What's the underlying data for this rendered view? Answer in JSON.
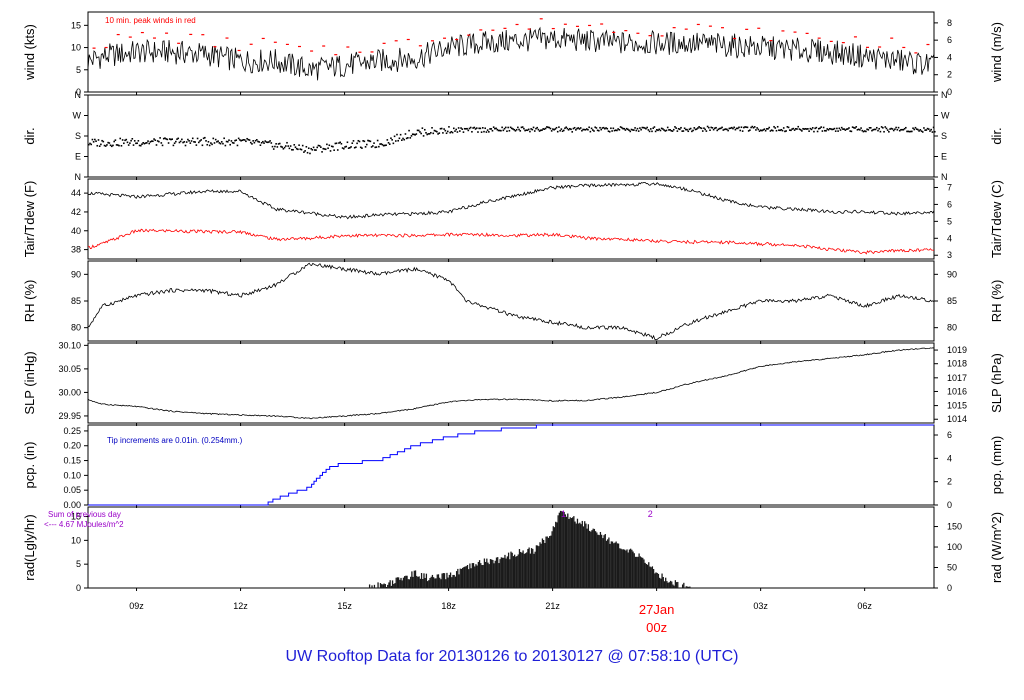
{
  "footer_title": "UW Rooftop Data for 20130126  to  20130127 @ 07:58:10  (UTC)",
  "colors": {
    "axis": "#000000",
    "tair": "#000000",
    "tdew": "#ff0000",
    "pcp": "#0000ff",
    "note_red": "#ff0000",
    "note_blue": "#0000c0",
    "purple": "#9a00c8",
    "date": "#ff0000"
  },
  "chart_data": [
    {
      "type": "line",
      "name": "wind",
      "ylabel": "wind (kts)",
      "ylabel_right": "wind (m/s)",
      "ylim": [
        0,
        18
      ],
      "yticks": [
        0,
        5,
        10,
        15
      ],
      "yticks_right": [
        {
          "label": "0",
          "value": 0
        },
        {
          "label": "2",
          "value": 3.888
        },
        {
          "label": "4",
          "value": 7.776
        },
        {
          "label": "6",
          "value": 11.664
        },
        {
          "label": "8",
          "value": 15.552
        }
      ],
      "annotation": "10 min. peak winds in red",
      "x_start_hour": 7.6,
      "x_end_hour": 32.0,
      "series": [
        {
          "name": "wind",
          "x": [
            7.6,
            8.0,
            9.0,
            10.0,
            11.0,
            12.0,
            13.0,
            14.0,
            15.0,
            16.0,
            17.0,
            18.0,
            19.0,
            20.0,
            21.0,
            22.0,
            23.0,
            24.0,
            25.0,
            26.0,
            27.0,
            28.0,
            29.0,
            30.0,
            31.0,
            32.0
          ],
          "values": [
            7.0,
            8.0,
            9.0,
            9.0,
            8.5,
            7.0,
            7.0,
            5.0,
            6.0,
            7.0,
            7.5,
            10.0,
            11.0,
            11.5,
            12.0,
            11.5,
            11.0,
            11.0,
            11.0,
            10.5,
            10.0,
            9.5,
            9.0,
            8.0,
            7.0,
            6.0
          ]
        },
        {
          "name": "10 min. peak",
          "x": [
            8.0,
            9.0,
            10.0,
            11.0,
            12.0,
            13.0,
            14.0,
            15.0,
            16.0,
            17.0,
            18.0,
            19.0,
            20.0,
            21.0,
            22.0,
            23.0,
            24.0,
            25.0,
            26.0,
            27.0,
            28.0,
            29.0,
            30.0,
            31.0,
            32.0
          ],
          "values": [
            11.0,
            12.5,
            12.5,
            11.5,
            10.5,
            11.0,
            8.5,
            9.5,
            10.5,
            11.0,
            13.0,
            14.0,
            14.5,
            15.5,
            15.0,
            14.5,
            14.0,
            14.5,
            13.5,
            13.0,
            13.0,
            12.0,
            11.5,
            10.5,
            9.0
          ]
        }
      ]
    },
    {
      "type": "scatter",
      "name": "dir",
      "ylabel": "dir.",
      "ylabel_right": "dir.",
      "ylim": [
        0,
        360
      ],
      "ytick_labels": [
        {
          "label": "N",
          "value": 0
        },
        {
          "label": "E",
          "value": 90
        },
        {
          "label": "S",
          "value": 180
        },
        {
          "label": "W",
          "value": 270
        },
        {
          "label": "N",
          "value": 360
        }
      ],
      "series": [
        {
          "name": "dir",
          "x": [
            7.6,
            10.0,
            12.0,
            13.5,
            14.0,
            15.0,
            16.0,
            17.0,
            18.0,
            20.0,
            22.0,
            24.0,
            26.0,
            28.0,
            30.0,
            32.0
          ],
          "values": [
            150,
            155,
            155,
            130,
            120,
            140,
            145,
            195,
            205,
            210,
            208,
            210,
            212,
            210,
            210,
            208
          ]
        }
      ]
    },
    {
      "type": "line",
      "name": "temperature",
      "ylabel": "Tair/Tdew (F)",
      "ylabel_right": "Tair/Tdew (C)",
      "ylim": [
        37,
        45.5
      ],
      "yticks": [
        38,
        40,
        42,
        44
      ],
      "yticks_right": [
        {
          "label": "3",
          "value": 37.4
        },
        {
          "label": "4",
          "value": 39.2
        },
        {
          "label": "5",
          "value": 41.0
        },
        {
          "label": "6",
          "value": 42.8
        },
        {
          "label": "7",
          "value": 44.6
        }
      ],
      "series": [
        {
          "name": "Tair",
          "x": [
            7.6,
            9.0,
            11.0,
            12.0,
            13.0,
            14.0,
            15.0,
            16.0,
            17.0,
            18.0,
            19.0,
            20.0,
            21.0,
            22.0,
            23.0,
            24.0,
            25.0,
            26.0,
            27.0,
            28.0,
            29.0,
            30.0,
            31.0,
            32.0
          ],
          "values": [
            44.0,
            43.6,
            44.2,
            44.2,
            42.3,
            41.9,
            41.4,
            41.7,
            41.8,
            42.0,
            43.0,
            43.8,
            44.6,
            44.8,
            44.9,
            45.0,
            44.3,
            43.2,
            42.5,
            42.3,
            42.0,
            42.0,
            41.8,
            42.0
          ]
        },
        {
          "name": "Tdew",
          "x": [
            7.6,
            8.0,
            9.0,
            10.0,
            11.0,
            12.0,
            13.0,
            14.0,
            15.0,
            16.0,
            17.0,
            18.0,
            19.0,
            20.0,
            21.0,
            22.0,
            23.0,
            24.0,
            25.0,
            26.0,
            27.0,
            28.0,
            29.0,
            30.0,
            31.0,
            32.0
          ],
          "values": [
            38.2,
            38.6,
            40.0,
            40.0,
            39.9,
            39.9,
            39.1,
            39.2,
            39.5,
            39.5,
            39.5,
            39.6,
            39.6,
            39.5,
            39.6,
            39.2,
            39.1,
            38.9,
            38.8,
            38.8,
            38.6,
            38.5,
            38.0,
            37.7,
            37.9,
            38.0
          ]
        }
      ]
    },
    {
      "type": "line",
      "name": "rh",
      "ylabel": "RH (%)",
      "ylabel_right": "RH (%)",
      "ylim": [
        77.5,
        92.5
      ],
      "yticks": [
        80,
        85,
        90
      ],
      "yticks_right": [
        {
          "label": "80",
          "value": 80
        },
        {
          "label": "85",
          "value": 85
        },
        {
          "label": "90",
          "value": 90
        }
      ],
      "series": [
        {
          "name": "RH",
          "x": [
            7.6,
            8.0,
            9.0,
            10.0,
            11.0,
            12.0,
            13.0,
            14.0,
            15.0,
            16.0,
            17.0,
            18.0,
            18.5,
            19.0,
            20.0,
            21.0,
            22.0,
            23.0,
            24.0,
            25.0,
            26.0,
            27.0,
            28.0,
            29.0,
            30.0,
            31.0,
            32.0
          ],
          "values": [
            80,
            84,
            86,
            87,
            87,
            86,
            88,
            92,
            91,
            90,
            91,
            89,
            85,
            84,
            82,
            81,
            80,
            80,
            78,
            81,
            83,
            85,
            85,
            86,
            84,
            86,
            85
          ]
        }
      ]
    },
    {
      "type": "line",
      "name": "slp",
      "ylabel": "SLP (inHg)",
      "ylabel_right": "SLP (hPa)",
      "ylim": [
        29.935,
        30.105
      ],
      "yticks": [
        29.95,
        30.0,
        30.05,
        30.1
      ],
      "ytick_labels": [
        "29.95",
        "30.00",
        "30.05",
        "30.10"
      ],
      "yticks_right": [
        {
          "label": "1014",
          "value": 29.943
        },
        {
          "label": "1015",
          "value": 29.972
        },
        {
          "label": "1016",
          "value": 30.002
        },
        {
          "label": "1017",
          "value": 30.031
        },
        {
          "label": "1018",
          "value": 30.061
        },
        {
          "label": "1019",
          "value": 30.09
        }
      ],
      "series": [
        {
          "name": "SLP",
          "x": [
            7.6,
            8.0,
            9.0,
            10.0,
            11.0,
            12.0,
            13.0,
            14.0,
            15.0,
            16.0,
            17.0,
            18.0,
            19.0,
            20.0,
            21.0,
            22.0,
            23.0,
            24.0,
            25.0,
            26.0,
            27.0,
            28.0,
            29.0,
            30.0,
            31.0,
            32.0
          ],
          "values": [
            29.985,
            29.975,
            29.97,
            29.96,
            29.955,
            29.952,
            29.95,
            29.945,
            29.95,
            29.955,
            29.965,
            29.98,
            29.985,
            29.985,
            29.982,
            29.983,
            29.99,
            30.0,
            30.02,
            30.035,
            30.055,
            30.065,
            30.072,
            30.08,
            30.09,
            30.095
          ]
        }
      ]
    },
    {
      "type": "area",
      "name": "pcp",
      "ylabel": "pcp. (in)",
      "ylabel_right": "pcp. (mm)",
      "ylim": [
        0,
        0.27
      ],
      "yticks": [
        0.0,
        0.05,
        0.1,
        0.15,
        0.2,
        0.25
      ],
      "ytick_labels": [
        "0.00",
        "0.05",
        "0.10",
        "0.15",
        "0.20",
        "0.25"
      ],
      "yticks_right": [
        {
          "label": "0",
          "value": 0
        },
        {
          "label": "2",
          "value": 0.0787
        },
        {
          "label": "4",
          "value": 0.1575
        },
        {
          "label": "6",
          "value": 0.2362
        }
      ],
      "annotation": "Tip increments are 0.01in. (0.254mm.)",
      "series": [
        {
          "name": "pcp",
          "x": [
            7.6,
            12.7,
            13.0,
            13.5,
            14.0,
            14.3,
            14.6,
            15.0,
            16.0,
            17.0,
            18.0,
            19.0,
            20.0,
            21.0,
            22.0,
            32.0
          ],
          "values": [
            0.0,
            0.0,
            0.02,
            0.04,
            0.06,
            0.1,
            0.13,
            0.14,
            0.15,
            0.2,
            0.23,
            0.25,
            0.26,
            0.27,
            0.27,
            0.27
          ]
        }
      ]
    },
    {
      "type": "area",
      "name": "rad",
      "ylabel": "rad(Lgly/hr)",
      "ylabel_right": "rad (W/m^2)",
      "ylim": [
        0,
        17
      ],
      "yticks": [
        0,
        5,
        10,
        15
      ],
      "yticks_right": [
        {
          "label": "0",
          "value": 0
        },
        {
          "label": "50",
          "value": 4.3
        },
        {
          "label": "100",
          "value": 8.6
        },
        {
          "label": "150",
          "value": 12.9
        }
      ],
      "annotation_lines": [
        "Sum of previous day",
        "<--- 4.67 MJoules/m^2"
      ],
      "markers": [
        {
          "label": "1",
          "x": 21.3
        },
        {
          "label": "2",
          "x": 23.8
        }
      ],
      "x_tick_labels": [
        "09z",
        "12z",
        "15z",
        "18z",
        "21z",
        "00z",
        "03z",
        "06z"
      ],
      "x_tick_hours": [
        9,
        12,
        15,
        18,
        21,
        24,
        27,
        30
      ],
      "date_label": "27Jan",
      "date_hour": "00z",
      "series": [
        {
          "name": "rad",
          "x": [
            15.7,
            16.0,
            16.5,
            17.0,
            17.5,
            18.0,
            18.5,
            19.0,
            19.5,
            20.0,
            20.5,
            21.0,
            21.2,
            21.5,
            22.0,
            22.5,
            23.0,
            23.5,
            24.0,
            24.5,
            25.0
          ],
          "values": [
            0,
            0.5,
            1.5,
            3.0,
            2.0,
            2.5,
            4.0,
            5.5,
            6.0,
            7.5,
            8.0,
            12.0,
            16.0,
            15.0,
            13.0,
            11.0,
            8.0,
            7.0,
            3.0,
            1.0,
            0.0
          ]
        }
      ]
    }
  ]
}
